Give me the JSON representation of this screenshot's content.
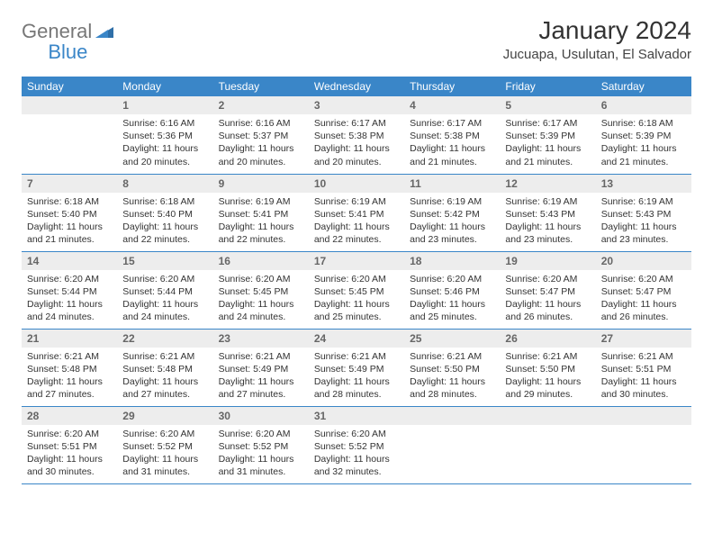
{
  "brand": {
    "part1": "General",
    "part2": "Blue"
  },
  "title": "January 2024",
  "location": "Jucuapa, Usulutan, El Salvador",
  "colors": {
    "header_bg": "#3a86c8",
    "header_text": "#ffffff",
    "daynum_bg": "#ededed",
    "daynum_text": "#666666",
    "body_text": "#333333",
    "rule": "#3a86c8",
    "page_bg": "#ffffff"
  },
  "day_headers": [
    "Sunday",
    "Monday",
    "Tuesday",
    "Wednesday",
    "Thursday",
    "Friday",
    "Saturday"
  ],
  "weeks": [
    [
      {
        "empty": true
      },
      {
        "n": "1",
        "sunrise": "Sunrise: 6:16 AM",
        "sunset": "Sunset: 5:36 PM",
        "day1": "Daylight: 11 hours",
        "day2": "and 20 minutes."
      },
      {
        "n": "2",
        "sunrise": "Sunrise: 6:16 AM",
        "sunset": "Sunset: 5:37 PM",
        "day1": "Daylight: 11 hours",
        "day2": "and 20 minutes."
      },
      {
        "n": "3",
        "sunrise": "Sunrise: 6:17 AM",
        "sunset": "Sunset: 5:38 PM",
        "day1": "Daylight: 11 hours",
        "day2": "and 20 minutes."
      },
      {
        "n": "4",
        "sunrise": "Sunrise: 6:17 AM",
        "sunset": "Sunset: 5:38 PM",
        "day1": "Daylight: 11 hours",
        "day2": "and 21 minutes."
      },
      {
        "n": "5",
        "sunrise": "Sunrise: 6:17 AM",
        "sunset": "Sunset: 5:39 PM",
        "day1": "Daylight: 11 hours",
        "day2": "and 21 minutes."
      },
      {
        "n": "6",
        "sunrise": "Sunrise: 6:18 AM",
        "sunset": "Sunset: 5:39 PM",
        "day1": "Daylight: 11 hours",
        "day2": "and 21 minutes."
      }
    ],
    [
      {
        "n": "7",
        "sunrise": "Sunrise: 6:18 AM",
        "sunset": "Sunset: 5:40 PM",
        "day1": "Daylight: 11 hours",
        "day2": "and 21 minutes."
      },
      {
        "n": "8",
        "sunrise": "Sunrise: 6:18 AM",
        "sunset": "Sunset: 5:40 PM",
        "day1": "Daylight: 11 hours",
        "day2": "and 22 minutes."
      },
      {
        "n": "9",
        "sunrise": "Sunrise: 6:19 AM",
        "sunset": "Sunset: 5:41 PM",
        "day1": "Daylight: 11 hours",
        "day2": "and 22 minutes."
      },
      {
        "n": "10",
        "sunrise": "Sunrise: 6:19 AM",
        "sunset": "Sunset: 5:41 PM",
        "day1": "Daylight: 11 hours",
        "day2": "and 22 minutes."
      },
      {
        "n": "11",
        "sunrise": "Sunrise: 6:19 AM",
        "sunset": "Sunset: 5:42 PM",
        "day1": "Daylight: 11 hours",
        "day2": "and 23 minutes."
      },
      {
        "n": "12",
        "sunrise": "Sunrise: 6:19 AM",
        "sunset": "Sunset: 5:43 PM",
        "day1": "Daylight: 11 hours",
        "day2": "and 23 minutes."
      },
      {
        "n": "13",
        "sunrise": "Sunrise: 6:19 AM",
        "sunset": "Sunset: 5:43 PM",
        "day1": "Daylight: 11 hours",
        "day2": "and 23 minutes."
      }
    ],
    [
      {
        "n": "14",
        "sunrise": "Sunrise: 6:20 AM",
        "sunset": "Sunset: 5:44 PM",
        "day1": "Daylight: 11 hours",
        "day2": "and 24 minutes."
      },
      {
        "n": "15",
        "sunrise": "Sunrise: 6:20 AM",
        "sunset": "Sunset: 5:44 PM",
        "day1": "Daylight: 11 hours",
        "day2": "and 24 minutes."
      },
      {
        "n": "16",
        "sunrise": "Sunrise: 6:20 AM",
        "sunset": "Sunset: 5:45 PM",
        "day1": "Daylight: 11 hours",
        "day2": "and 24 minutes."
      },
      {
        "n": "17",
        "sunrise": "Sunrise: 6:20 AM",
        "sunset": "Sunset: 5:45 PM",
        "day1": "Daylight: 11 hours",
        "day2": "and 25 minutes."
      },
      {
        "n": "18",
        "sunrise": "Sunrise: 6:20 AM",
        "sunset": "Sunset: 5:46 PM",
        "day1": "Daylight: 11 hours",
        "day2": "and 25 minutes."
      },
      {
        "n": "19",
        "sunrise": "Sunrise: 6:20 AM",
        "sunset": "Sunset: 5:47 PM",
        "day1": "Daylight: 11 hours",
        "day2": "and 26 minutes."
      },
      {
        "n": "20",
        "sunrise": "Sunrise: 6:20 AM",
        "sunset": "Sunset: 5:47 PM",
        "day1": "Daylight: 11 hours",
        "day2": "and 26 minutes."
      }
    ],
    [
      {
        "n": "21",
        "sunrise": "Sunrise: 6:21 AM",
        "sunset": "Sunset: 5:48 PM",
        "day1": "Daylight: 11 hours",
        "day2": "and 27 minutes."
      },
      {
        "n": "22",
        "sunrise": "Sunrise: 6:21 AM",
        "sunset": "Sunset: 5:48 PM",
        "day1": "Daylight: 11 hours",
        "day2": "and 27 minutes."
      },
      {
        "n": "23",
        "sunrise": "Sunrise: 6:21 AM",
        "sunset": "Sunset: 5:49 PM",
        "day1": "Daylight: 11 hours",
        "day2": "and 27 minutes."
      },
      {
        "n": "24",
        "sunrise": "Sunrise: 6:21 AM",
        "sunset": "Sunset: 5:49 PM",
        "day1": "Daylight: 11 hours",
        "day2": "and 28 minutes."
      },
      {
        "n": "25",
        "sunrise": "Sunrise: 6:21 AM",
        "sunset": "Sunset: 5:50 PM",
        "day1": "Daylight: 11 hours",
        "day2": "and 28 minutes."
      },
      {
        "n": "26",
        "sunrise": "Sunrise: 6:21 AM",
        "sunset": "Sunset: 5:50 PM",
        "day1": "Daylight: 11 hours",
        "day2": "and 29 minutes."
      },
      {
        "n": "27",
        "sunrise": "Sunrise: 6:21 AM",
        "sunset": "Sunset: 5:51 PM",
        "day1": "Daylight: 11 hours",
        "day2": "and 30 minutes."
      }
    ],
    [
      {
        "n": "28",
        "sunrise": "Sunrise: 6:20 AM",
        "sunset": "Sunset: 5:51 PM",
        "day1": "Daylight: 11 hours",
        "day2": "and 30 minutes."
      },
      {
        "n": "29",
        "sunrise": "Sunrise: 6:20 AM",
        "sunset": "Sunset: 5:52 PM",
        "day1": "Daylight: 11 hours",
        "day2": "and 31 minutes."
      },
      {
        "n": "30",
        "sunrise": "Sunrise: 6:20 AM",
        "sunset": "Sunset: 5:52 PM",
        "day1": "Daylight: 11 hours",
        "day2": "and 31 minutes."
      },
      {
        "n": "31",
        "sunrise": "Sunrise: 6:20 AM",
        "sunset": "Sunset: 5:52 PM",
        "day1": "Daylight: 11 hours",
        "day2": "and 32 minutes."
      },
      {
        "empty": true
      },
      {
        "empty": true
      },
      {
        "empty": true
      }
    ]
  ]
}
